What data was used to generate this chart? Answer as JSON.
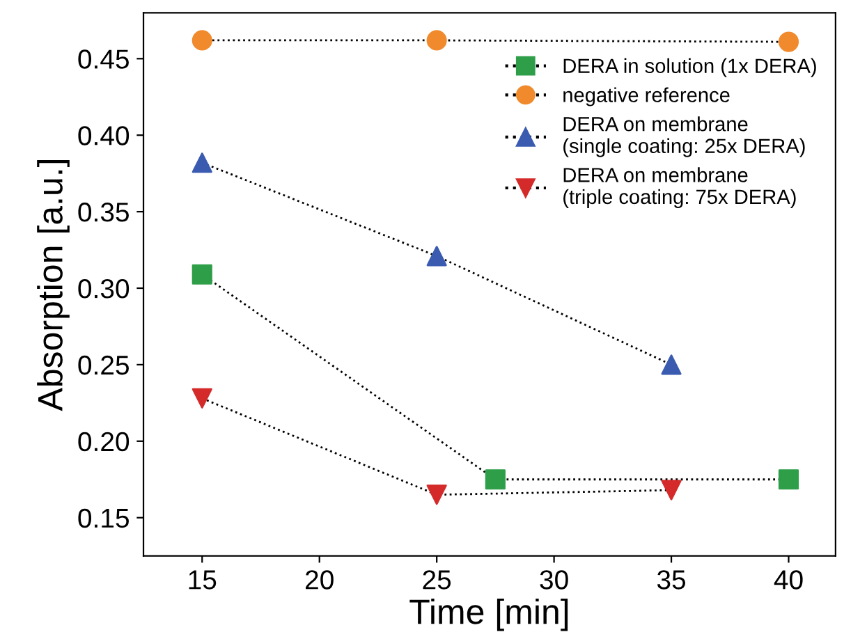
{
  "chart_data": {
    "type": "line",
    "xlabel": "Time [min]",
    "ylabel": "Absorption [a.u.]",
    "xlim": [
      12.5,
      42
    ],
    "xticks": [
      15,
      20,
      25,
      30,
      35,
      40
    ],
    "ylim": [
      0.125,
      0.48
    ],
    "yticks": [
      {
        "value": 0.15,
        "label": "0.15"
      },
      {
        "value": 0.2,
        "label": "0.20"
      },
      {
        "value": 0.25,
        "label": "0.25"
      },
      {
        "value": 0.3,
        "label": "0.30"
      },
      {
        "value": 0.35,
        "label": "0.35"
      },
      {
        "value": 0.4,
        "label": "0.40"
      },
      {
        "value": 0.45,
        "label": "0.45"
      }
    ],
    "line_style": "dotted",
    "grid": false,
    "legend": "top right",
    "series": [
      {
        "name": "DERA in solution (1x DERA)",
        "color": "#2e9e48",
        "marker": "square",
        "x": [
          15,
          27.5,
          40
        ],
        "values": [
          0.309,
          0.175,
          0.175
        ]
      },
      {
        "name": "negative reference",
        "color": "#f08a2c",
        "marker": "circle",
        "x": [
          15,
          25,
          40
        ],
        "values": [
          0.462,
          0.462,
          0.461
        ]
      },
      {
        "name": "DERA on membrane\n(single coating: 25x DERA)",
        "color": "#3a5bb0",
        "marker": "triangle",
        "x": [
          15,
          25,
          35
        ],
        "values": [
          0.382,
          0.321,
          0.25
        ]
      },
      {
        "name": "DERA on membrane\n(triple coating: 75x DERA)",
        "color": "#d42a2a",
        "marker": "triangle_down",
        "x": [
          15,
          25,
          35
        ],
        "values": [
          0.228,
          0.165,
          0.168
        ]
      }
    ]
  }
}
